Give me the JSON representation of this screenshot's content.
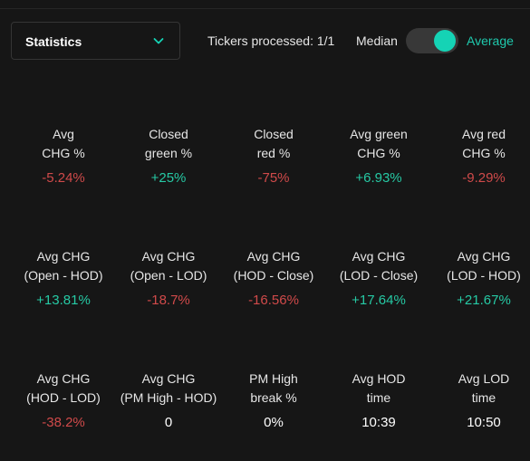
{
  "toolbar": {
    "view_select": {
      "selected": "Statistics",
      "icon": "chevron-down-icon"
    },
    "tickers_processed": "Tickers processed: 1/1",
    "aggregation_toggle": {
      "left_label": "Median",
      "right_label": "Average",
      "active": "Average"
    }
  },
  "colors": {
    "negative": "#d04a4a",
    "positive": "#26c9a4",
    "neutral": "#ffffff",
    "accent": "#15d3b5",
    "background": "#161616"
  },
  "stats": [
    [
      {
        "label": "Avg\nCHG %",
        "value": "-5.24%",
        "tone": "neg"
      },
      {
        "label": "Closed\ngreen %",
        "value": "+25%",
        "tone": "pos"
      },
      {
        "label": "Closed\nred %",
        "value": "-75%",
        "tone": "neg"
      },
      {
        "label": "Avg green\nCHG %",
        "value": "+6.93%",
        "tone": "pos"
      },
      {
        "label": "Avg red\nCHG %",
        "value": "-9.29%",
        "tone": "neg"
      }
    ],
    [
      {
        "label": "Avg CHG\n(Open - HOD)",
        "value": "+13.81%",
        "tone": "pos"
      },
      {
        "label": "Avg CHG\n(Open - LOD)",
        "value": "-18.7%",
        "tone": "neg"
      },
      {
        "label": "Avg CHG\n(HOD - Close)",
        "value": "-16.56%",
        "tone": "neg"
      },
      {
        "label": "Avg CHG\n(LOD - Close)",
        "value": "+17.64%",
        "tone": "pos"
      },
      {
        "label": "Avg CHG\n(LOD - HOD)",
        "value": "+21.67%",
        "tone": "pos"
      }
    ],
    [
      {
        "label": "Avg CHG\n(HOD - LOD)",
        "value": "-38.2%",
        "tone": "neg"
      },
      {
        "label": "Avg CHG\n(PM High - HOD)",
        "value": "0",
        "tone": "neu"
      },
      {
        "label": "PM High\nbreak %",
        "value": "0%",
        "tone": "neu"
      },
      {
        "label": "Avg HOD\ntime",
        "value": "10:39",
        "tone": "neu"
      },
      {
        "label": "Avg LOD\ntime",
        "value": "10:50",
        "tone": "neu"
      }
    ]
  ]
}
